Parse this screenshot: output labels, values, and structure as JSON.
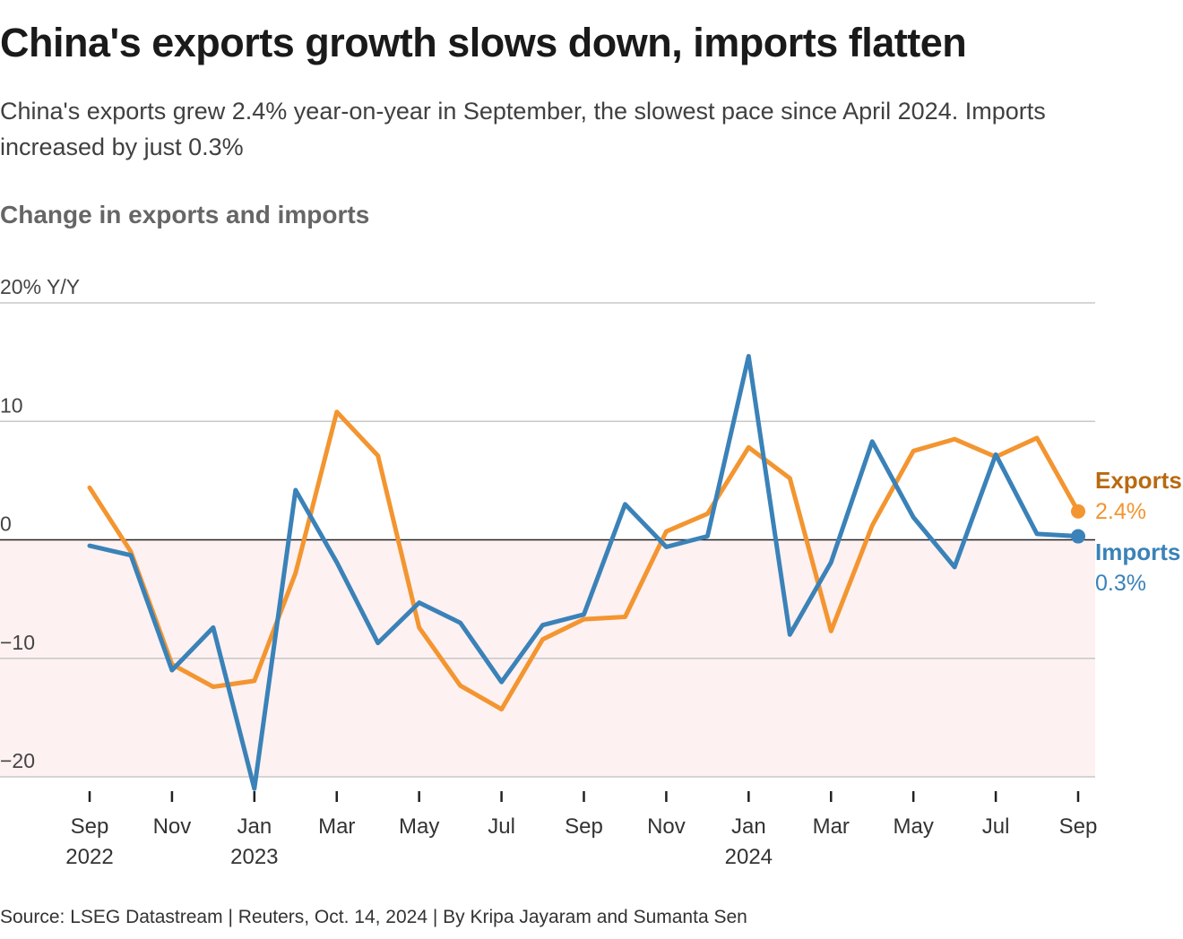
{
  "title": "China's exports growth slows down, imports flatten",
  "subtitle": "China's exports grew 2.4% year-on-year in September, the slowest pace since April 2024. Imports increased by just 0.3%",
  "chart_heading": "Change in exports and imports",
  "source": "Source: LSEG Datastream | Reuters, Oct. 14, 2024 | By Kripa Jayaram and Sumanta Sen",
  "colors": {
    "exports": "#f39530",
    "exports_label": "#b86a10",
    "imports": "#3a82b8",
    "negative_fill": "#fdf1f1",
    "grid": "#c8c8c8",
    "zero_line": "#222222"
  },
  "chart_data": {
    "type": "line",
    "months": [
      "Sep 2022",
      "Oct 2022",
      "Nov 2022",
      "Dec 2022",
      "Jan 2023",
      "Feb 2023",
      "Mar 2023",
      "Apr 2023",
      "May 2023",
      "Jun 2023",
      "Jul 2023",
      "Aug 2023",
      "Sep 2023",
      "Oct 2023",
      "Nov 2023",
      "Dec 2023",
      "Jan 2024",
      "Feb 2024",
      "Mar 2024",
      "Apr 2024",
      "May 2024",
      "Jun 2024",
      "Jul 2024",
      "Aug 2024",
      "Sep 2024"
    ],
    "series": [
      {
        "name": "Exports",
        "end_label": "2.4%",
        "values": [
          4.4,
          -1.0,
          -10.5,
          -12.4,
          -11.9,
          -2.8,
          10.8,
          7.1,
          -7.4,
          -12.3,
          -14.3,
          -8.4,
          -6.7,
          -6.5,
          0.7,
          2.2,
          7.8,
          5.2,
          -7.7,
          1.2,
          7.5,
          8.5,
          7.0,
          8.6,
          2.4
        ]
      },
      {
        "name": "Imports",
        "end_label": "0.3%",
        "values": [
          -0.5,
          -1.3,
          -11.0,
          -7.4,
          -21.0,
          4.2,
          -1.9,
          -8.7,
          -5.3,
          -7.0,
          -12.0,
          -7.2,
          -6.3,
          3.0,
          -0.6,
          0.3,
          15.5,
          -8.0,
          -1.9,
          8.3,
          1.9,
          -2.3,
          7.2,
          0.5,
          0.3
        ]
      }
    ],
    "xaxis_ticks": [
      {
        "index": 0,
        "label": "Sep",
        "year": "2022"
      },
      {
        "index": 2,
        "label": "Nov",
        "year": ""
      },
      {
        "index": 4,
        "label": "Jan",
        "year": "2023"
      },
      {
        "index": 6,
        "label": "Mar",
        "year": ""
      },
      {
        "index": 8,
        "label": "May",
        "year": ""
      },
      {
        "index": 10,
        "label": "Jul",
        "year": ""
      },
      {
        "index": 12,
        "label": "Sep",
        "year": ""
      },
      {
        "index": 14,
        "label": "Nov",
        "year": ""
      },
      {
        "index": 16,
        "label": "Jan",
        "year": "2024"
      },
      {
        "index": 18,
        "label": "Mar",
        "year": ""
      },
      {
        "index": 20,
        "label": "May",
        "year": ""
      },
      {
        "index": 22,
        "label": "Jul",
        "year": ""
      },
      {
        "index": 24,
        "label": "Sep",
        "year": ""
      }
    ],
    "yaxis_ticks": [
      {
        "value": 20,
        "label": "20% Y/Y"
      },
      {
        "value": 10,
        "label": "10"
      },
      {
        "value": 0,
        "label": "0"
      },
      {
        "value": -10,
        "label": "−10"
      },
      {
        "value": -20,
        "label": "−20"
      }
    ],
    "ylim": [
      -20,
      20
    ],
    "grid": true,
    "legend": "end-of-line labels, right"
  }
}
